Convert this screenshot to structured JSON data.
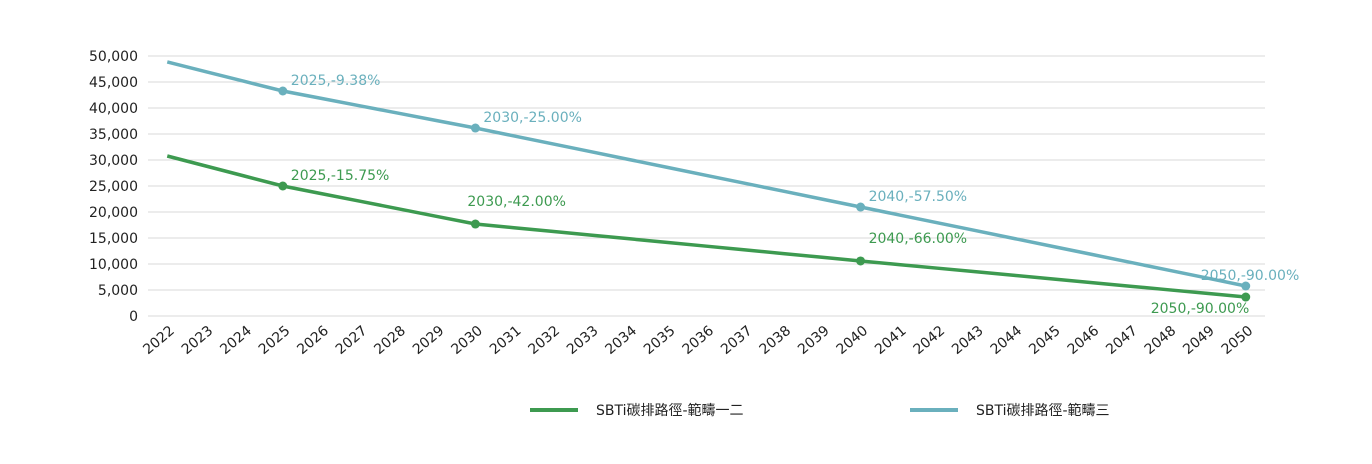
{
  "chart_data": {
    "type": "line",
    "categories": [
      "2022",
      "2023",
      "2024",
      "2025",
      "2026",
      "2027",
      "2028",
      "2029",
      "2030",
      "2031",
      "2032",
      "2033",
      "2034",
      "2035",
      "2036",
      "2037",
      "2038",
      "2039",
      "2040",
      "2041",
      "2042",
      "2043",
      "2044",
      "2045",
      "2046",
      "2047",
      "2048",
      "2049",
      "2050"
    ],
    "series": [
      {
        "name": "SBTi碳排路徑-範疇一二",
        "color": "#3d9a50",
        "values": [
          30770,
          28847,
          26923,
          25000,
          23538,
          22076,
          20614,
          19152,
          17690,
          16979,
          16268,
          15557,
          14846,
          14135,
          13424,
          12713,
          12002,
          11291,
          10580,
          9887,
          9194,
          8501,
          7808,
          7115,
          6422,
          5729,
          5036,
          4343,
          3650
        ],
        "point_labels": [
          null,
          null,
          null,
          "2025,-15.75%",
          null,
          null,
          null,
          null,
          "2030,-42.00%",
          null,
          null,
          null,
          null,
          null,
          null,
          null,
          null,
          null,
          "2040,-66.00%",
          null,
          null,
          null,
          null,
          null,
          null,
          null,
          null,
          null,
          "2050,-90.00%"
        ]
      },
      {
        "name": "SBTi碳排路徑-範疇三",
        "color": "#6ab0bd",
        "values": [
          48850,
          46990,
          45130,
          43270,
          41846,
          40422,
          38998,
          37574,
          36150,
          34631,
          33112,
          31593,
          30074,
          28555,
          27036,
          25517,
          23998,
          22479,
          20960,
          19441,
          17922,
          16403,
          14884,
          13365,
          11846,
          10327,
          8808,
          7289,
          5770
        ],
        "point_labels": [
          null,
          null,
          null,
          "2025,-9.38%",
          null,
          null,
          null,
          null,
          "2030,-25.00%",
          null,
          null,
          null,
          null,
          null,
          null,
          null,
          null,
          null,
          "2040,-57.50%",
          null,
          null,
          null,
          null,
          null,
          null,
          null,
          null,
          null,
          "2050,-90.00%"
        ]
      }
    ],
    "ylim": [
      0,
      50000
    ],
    "yticks": [
      0,
      {
        "value": 5000,
        "label": "5,000"
      },
      {
        "value": 10000,
        "label": "10,000"
      },
      {
        "value": 15000,
        "label": "15,000"
      },
      {
        "value": 20000,
        "label": "20,000"
      },
      {
        "value": 25000,
        "label": "25,000"
      },
      {
        "value": 30000,
        "label": "30,000"
      },
      {
        "value": 35000,
        "label": "35,000"
      },
      {
        "value": 40000,
        "label": "40,000"
      },
      {
        "value": 45000,
        "label": "45,000"
      },
      {
        "value": 50000,
        "label": "50,000"
      }
    ],
    "grid": true,
    "legend": "bottom"
  }
}
